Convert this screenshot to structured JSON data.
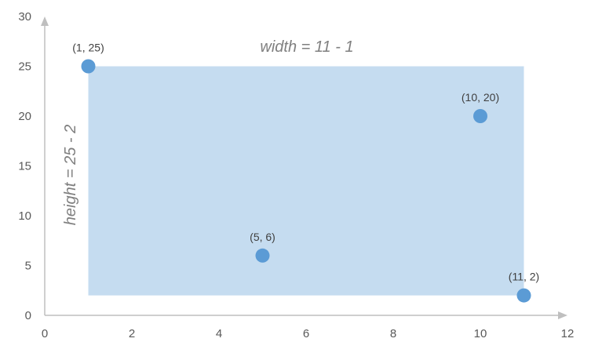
{
  "chart_data": {
    "type": "scatter",
    "xlim": [
      0,
      12
    ],
    "ylim": [
      0,
      30
    ],
    "x_ticks": [
      0,
      2,
      4,
      6,
      8,
      10,
      12
    ],
    "y_ticks": [
      0,
      5,
      10,
      15,
      20,
      25,
      30
    ],
    "grid": false,
    "points": [
      {
        "x": 1,
        "y": 25,
        "label": "(1, 25)"
      },
      {
        "x": 10,
        "y": 20,
        "label": "(10, 20)"
      },
      {
        "x": 5,
        "y": 6,
        "label": "(5, 6)"
      },
      {
        "x": 11,
        "y": 2,
        "label": "(11, 2)"
      }
    ],
    "bounding_rectangle": {
      "x_min": 1,
      "x_max": 11,
      "y_min": 2,
      "y_max": 25
    },
    "annotations": {
      "width": "width = 11 - 1",
      "height": "height = 25 - 2"
    },
    "colors": {
      "point": "#5b9bd5",
      "rectangle": "#c5dcf0",
      "axis": "#bfbfbf",
      "tick_text": "#595959",
      "annotation_text": "#7f7f7f"
    }
  }
}
